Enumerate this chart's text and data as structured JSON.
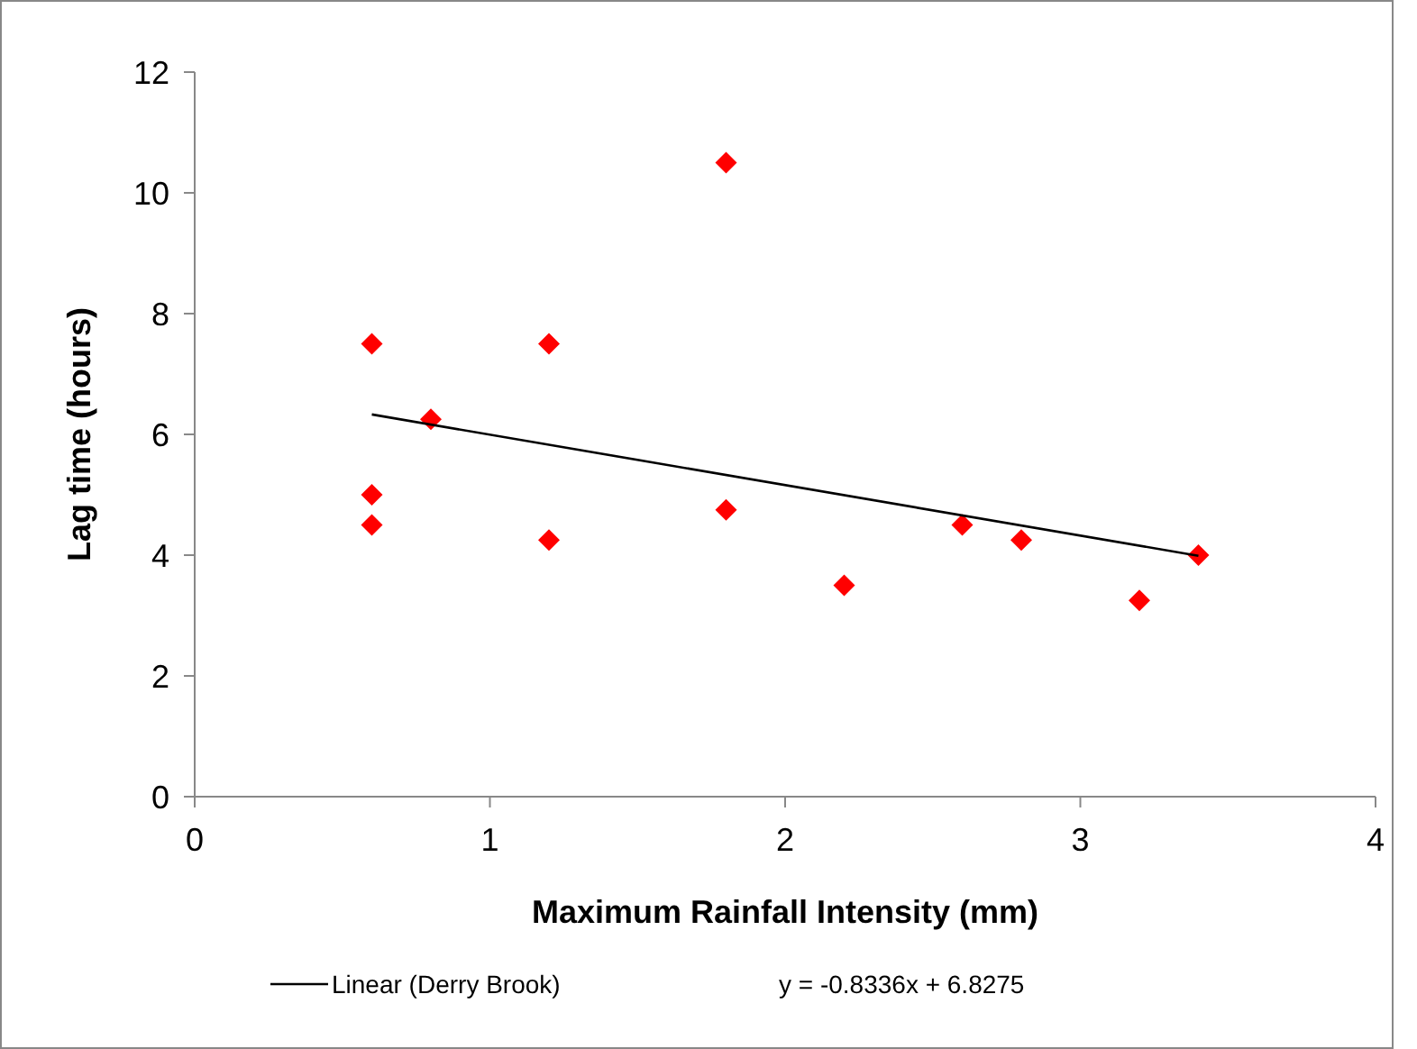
{
  "chart_data": {
    "type": "scatter",
    "xlabel": "Maximum Rainfall Intensity  (mm)",
    "ylabel": "Lag time (hours)",
    "xlim": [
      0,
      4
    ],
    "xticks": [
      0,
      1,
      2,
      3,
      4
    ],
    "ylim": [
      0,
      12
    ],
    "yticks": [
      0,
      2,
      4,
      6,
      8,
      10,
      12
    ],
    "grid": false,
    "legend": "bottom",
    "annotations": [
      "y = -0.8336x + 6.8275"
    ],
    "series": [
      {
        "color": "#ff0000",
        "marker": "diamond",
        "x": [
          0.6,
          0.6,
          0.6,
          0.8,
          1.2,
          1.2,
          1.8,
          1.8,
          2.2,
          2.6,
          2.8,
          3.2,
          3.4
        ],
        "values": [
          7.5,
          5.0,
          4.5,
          6.25,
          7.5,
          4.25,
          10.5,
          4.75,
          3.5,
          4.5,
          4.25,
          3.25,
          4.0
        ]
      },
      {
        "type": "line",
        "name": "Linear (Derry Brook)",
        "color": "#000000",
        "marker": "none",
        "line_style": "solid",
        "x": [
          0.6,
          3.4
        ],
        "values": [
          6.33,
          3.99
        ]
      }
    ]
  }
}
